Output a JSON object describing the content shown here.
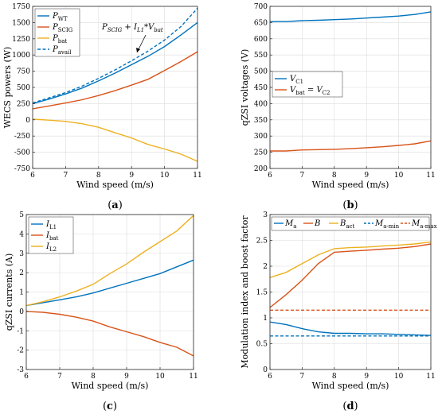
{
  "colors": {
    "blue": "#0072BD",
    "orange": "#D95319",
    "yellow": "#EDB120",
    "grid": "#dcdcdc",
    "axis": "#262626"
  },
  "chart_data": [
    {
      "id": "a",
      "type": "line",
      "panel_label": "(a)",
      "xlabel": "Wind speed (m/s)",
      "ylabel": "WECS powers (W)",
      "xlim": [
        6,
        11
      ],
      "ylim": [
        -750,
        1750
      ],
      "xticks": [
        6,
        7,
        8,
        9,
        10,
        11
      ],
      "yticks": [
        -750,
        -500,
        -250,
        0,
        250,
        500,
        750,
        1000,
        1250,
        1500,
        1750
      ],
      "grid": true,
      "legend_position": "top-left",
      "annotation": {
        "main": "P",
        "sub": "SCIG",
        "rest": " + I",
        "sub2": "L1",
        "rest2": "*V",
        "sub3": "bat"
      },
      "series": [
        {
          "name": "P",
          "sub": "WT",
          "color": "blue",
          "dash": false,
          "x": [
            6,
            6.5,
            7,
            7.5,
            8,
            8.5,
            9,
            9.5,
            10,
            10.5,
            11
          ],
          "y": [
            250,
            320,
            400,
            490,
            600,
            720,
            850,
            980,
            1130,
            1310,
            1500
          ]
        },
        {
          "name": "P",
          "sub": "SCIG",
          "color": "orange",
          "dash": false,
          "x": [
            6,
            6.5,
            7,
            7.5,
            8,
            8.5,
            9,
            9.5,
            10,
            10.5,
            11
          ],
          "y": [
            170,
            215,
            260,
            310,
            375,
            450,
            535,
            625,
            760,
            900,
            1050
          ]
        },
        {
          "name": "P",
          "sub": "bat",
          "color": "yellow",
          "dash": false,
          "x": [
            6,
            6.5,
            7,
            7.5,
            8,
            8.5,
            9,
            9.5,
            10,
            10.5,
            11
          ],
          "y": [
            10,
            -5,
            -25,
            -60,
            -115,
            -200,
            -280,
            -380,
            -450,
            -530,
            -640
          ]
        },
        {
          "name": "P",
          "sub": "avail",
          "color": "blue",
          "dash": true,
          "x": [
            6,
            6.5,
            7,
            7.5,
            8,
            8.5,
            9,
            9.5,
            10,
            10.5,
            11
          ],
          "y": [
            260,
            340,
            420,
            520,
            640,
            770,
            910,
            1060,
            1230,
            1440,
            1720
          ]
        }
      ]
    },
    {
      "id": "b",
      "type": "line",
      "panel_label": "(b)",
      "xlabel": "Wind speed (m/s)",
      "ylabel": "qZSI voltages (V)",
      "xlim": [
        6,
        11
      ],
      "ylim": [
        200,
        700
      ],
      "xticks": [
        6,
        7,
        8,
        9,
        10,
        11
      ],
      "yticks": [
        200,
        250,
        300,
        350,
        400,
        450,
        500,
        550,
        600,
        650,
        700
      ],
      "grid": true,
      "legend_position": "center-left",
      "series": [
        {
          "name": "V",
          "sub": "C1",
          "color": "blue",
          "dash": false,
          "x": [
            6,
            6.5,
            7,
            7.5,
            8,
            8.5,
            9,
            9.5,
            10,
            10.5,
            11
          ],
          "y": [
            653,
            653,
            656,
            657,
            659,
            661,
            664,
            667,
            670,
            675,
            683
          ]
        },
        {
          "name": "V",
          "sub": "bat",
          "name2": " = V",
          "sub2": "C2",
          "color": "orange",
          "dash": false,
          "x": [
            6,
            6.5,
            7,
            7.5,
            8,
            8.5,
            9,
            9.5,
            10,
            10.5,
            11
          ],
          "y": [
            254,
            254,
            257,
            258,
            259,
            261,
            264,
            267,
            271,
            276,
            285
          ]
        }
      ]
    },
    {
      "id": "c",
      "type": "line",
      "panel_label": "(c)",
      "xlabel": "Wind speed (m/s)",
      "ylabel": "qZSI currents (A)",
      "xlim": [
        6,
        11
      ],
      "ylim": [
        -3,
        5
      ],
      "xticks": [
        6,
        7,
        8,
        9,
        10,
        11
      ],
      "yticks": [
        -3,
        -2,
        -1,
        0,
        1,
        2,
        3,
        4,
        5
      ],
      "grid": true,
      "legend_position": "top-left",
      "series": [
        {
          "name": "I",
          "sub": "L1",
          "color": "blue",
          "dash": false,
          "x": [
            6,
            6.5,
            7,
            7.5,
            8,
            8.5,
            9,
            9.5,
            10,
            10.5,
            11
          ],
          "y": [
            0.3,
            0.45,
            0.6,
            0.75,
            0.95,
            1.2,
            1.45,
            1.7,
            1.95,
            2.3,
            2.65
          ]
        },
        {
          "name": "I",
          "sub": "bat",
          "color": "orange",
          "dash": false,
          "x": [
            6,
            6.5,
            7,
            7.5,
            8,
            8.5,
            9,
            9.5,
            10,
            10.5,
            11
          ],
          "y": [
            0.0,
            -0.05,
            -0.15,
            -0.3,
            -0.5,
            -0.8,
            -1.05,
            -1.3,
            -1.6,
            -1.85,
            -2.3
          ]
        },
        {
          "name": "I",
          "sub": "L2",
          "color": "yellow",
          "dash": false,
          "x": [
            6,
            6.5,
            7,
            7.5,
            8,
            8.5,
            9,
            9.5,
            10,
            10.5,
            11
          ],
          "y": [
            0.3,
            0.5,
            0.75,
            1.05,
            1.4,
            1.95,
            2.45,
            3.05,
            3.6,
            4.15,
            4.95
          ]
        }
      ]
    },
    {
      "id": "d",
      "type": "line",
      "panel_label": "(d)",
      "xlabel": "Wind speed (m/s)",
      "ylabel": "Modulation index and boost factor",
      "xlim": [
        6,
        11
      ],
      "ylim": [
        0,
        3
      ],
      "xticks": [
        6,
        7,
        8,
        9,
        10,
        11
      ],
      "yticks": [
        0,
        0.5,
        1,
        1.5,
        2,
        2.5,
        3
      ],
      "grid": true,
      "legend_position": "top",
      "series": [
        {
          "name": "M",
          "sub": "a",
          "color": "blue",
          "dash": false,
          "x": [
            6,
            6.5,
            7,
            7.5,
            8,
            8.5,
            9,
            9.5,
            10,
            10.5,
            11
          ],
          "y": [
            0.92,
            0.87,
            0.79,
            0.73,
            0.7,
            0.7,
            0.69,
            0.69,
            0.68,
            0.67,
            0.66
          ]
        },
        {
          "name": "B",
          "sub": "",
          "color": "orange",
          "dash": false,
          "x": [
            6,
            6.5,
            7,
            7.5,
            8,
            8.5,
            9,
            9.5,
            10,
            10.5,
            11
          ],
          "y": [
            1.2,
            1.45,
            1.73,
            2.05,
            2.27,
            2.29,
            2.31,
            2.33,
            2.35,
            2.38,
            2.43
          ]
        },
        {
          "name": "B",
          "sub": "act",
          "color": "yellow",
          "dash": false,
          "x": [
            6,
            6.5,
            7,
            7.5,
            8,
            8.5,
            9,
            9.5,
            10,
            10.5,
            11
          ],
          "y": [
            1.78,
            1.88,
            2.05,
            2.22,
            2.34,
            2.36,
            2.37,
            2.39,
            2.41,
            2.43,
            2.47
          ]
        },
        {
          "name": "M",
          "sub": "a-min",
          "color": "blue",
          "dash": true,
          "x": [
            6,
            11
          ],
          "y": [
            0.65,
            0.65
          ]
        },
        {
          "name": "M",
          "sub": "a-max",
          "color": "orange",
          "dash": true,
          "x": [
            6,
            11
          ],
          "y": [
            1.15,
            1.15
          ]
        }
      ]
    }
  ]
}
